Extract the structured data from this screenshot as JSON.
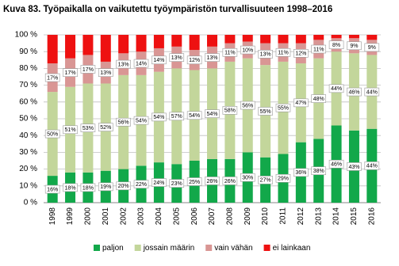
{
  "chart_data": {
    "type": "stacked-bar-100",
    "title": "Kuva 83. Työpaikalla on vaikutettu työympäristön turvallisuuteen 1998–2016",
    "categories": [
      "1998",
      "1999",
      "2000",
      "2001",
      "2002",
      "2003",
      "2004",
      "2005",
      "2006",
      "2007",
      "2008",
      "2009",
      "2010",
      "2011",
      "2012",
      "2013",
      "2014",
      "2015",
      "2016"
    ],
    "series": [
      {
        "name": "paljon",
        "color": "#12a84a",
        "values": [
          16,
          18,
          18,
          19,
          20,
          22,
          24,
          23,
          25,
          26,
          26,
          30,
          27,
          29,
          36,
          38,
          46,
          43,
          44
        ],
        "value_labels": [
          "16%",
          "18%",
          "18%",
          "19%",
          "20%",
          "22%",
          "24%",
          "23%",
          "25%",
          "26%",
          "26%",
          "30%",
          "27%",
          "29%",
          "36%",
          "38%",
          "46%",
          "43%",
          "44%"
        ]
      },
      {
        "name": "jossain määrin",
        "color": "#c3d69b",
        "values": [
          50,
          51,
          53,
          52,
          56,
          54,
          54,
          57,
          54,
          54,
          58,
          56,
          55,
          55,
          47,
          48,
          44,
          46,
          44
        ],
        "value_labels": [
          "50%",
          "51%",
          "53%",
          "52%",
          "56%",
          "54%",
          "54%",
          "57%",
          "54%",
          "54%",
          "58%",
          "56%",
          "55%",
          "55%",
          "47%",
          "48%",
          "44%",
          "46%",
          "44%"
        ]
      },
      {
        "name": "vain vähän",
        "color": "#d99694",
        "values": [
          17,
          17,
          17,
          13,
          13,
          14,
          14,
          13,
          12,
          13,
          11,
          10,
          13,
          11,
          12,
          11,
          8,
          9,
          9
        ],
        "value_labels": [
          "17%",
          "17%",
          "17%",
          "13%",
          "13%",
          "14%",
          "14%",
          "13%",
          "12%",
          "13%",
          "11%",
          "10%",
          "13%",
          "11%",
          "12%",
          "11%",
          "8%",
          "9%",
          "9%"
        ]
      },
      {
        "name": "ei lainkaan",
        "color": "#ee1111",
        "values": [
          17,
          14,
          12,
          16,
          11,
          10,
          8,
          7,
          9,
          7,
          5,
          4,
          5,
          5,
          5,
          3,
          2,
          2,
          3
        ]
      }
    ],
    "ylim": [
      0,
      100
    ],
    "yticks": [
      {
        "value": 0,
        "label": "0 %"
      },
      {
        "value": 10,
        "label": "10 %"
      },
      {
        "value": 20,
        "label": "20 %"
      },
      {
        "value": 30,
        "label": "30 %"
      },
      {
        "value": 40,
        "label": "40 %"
      },
      {
        "value": 50,
        "label": "50 %"
      },
      {
        "value": 60,
        "label": "60 %"
      },
      {
        "value": 70,
        "label": "70 %"
      },
      {
        "value": 80,
        "label": "80 %"
      },
      {
        "value": 90,
        "label": "90 %"
      },
      {
        "value": 100,
        "label": "100 %"
      }
    ],
    "grid": true,
    "legend": "bottom"
  }
}
